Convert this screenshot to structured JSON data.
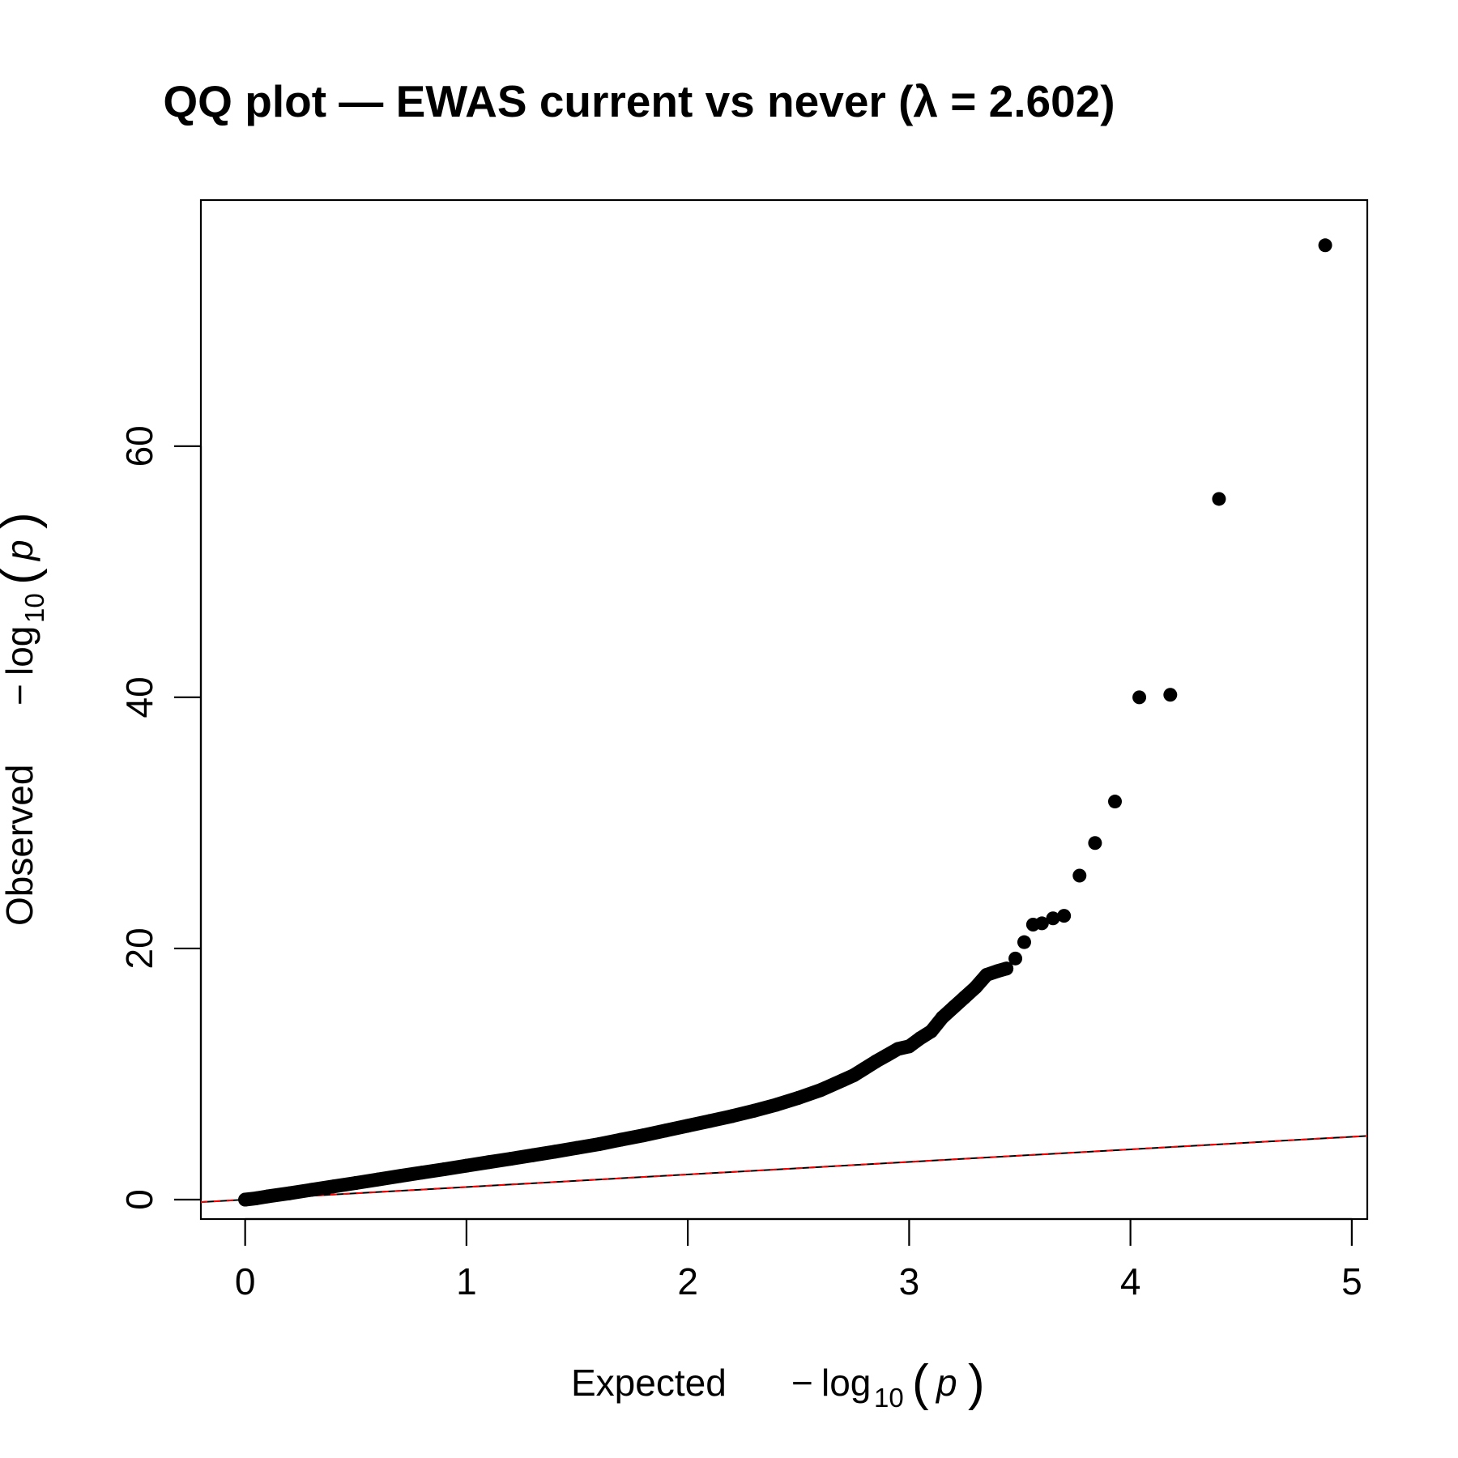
{
  "chart_data": {
    "type": "scatter",
    "title": "QQ plot — EWAS current vs never (λ = 2.602)",
    "xlabel": {
      "prefix": "Expected",
      "minus": "−",
      "log": "log",
      "base": "10",
      "open_paren": "(",
      "var": "p",
      "close_paren": ")"
    },
    "ylabel": {
      "prefix": "Observed",
      "minus": "−",
      "log": "log",
      "base": "10",
      "open_paren": "(",
      "var": "p",
      "close_paren": ")"
    },
    "xlim": [
      -0.2,
      5.07
    ],
    "ylim": [
      -1.55,
      79.6
    ],
    "x_ticks": [
      0,
      1,
      2,
      3,
      4,
      5
    ],
    "x_tick_labels": [
      "0",
      "1",
      "2",
      "3",
      "4",
      "5"
    ],
    "y_ticks": [
      0,
      20,
      40,
      60
    ],
    "y_tick_labels": [
      "0",
      "20",
      "40",
      "60"
    ],
    "grid": false,
    "reference_line": {
      "slope": 1,
      "intercept": 0,
      "colors": [
        "#000000",
        "#ff0000"
      ],
      "dashed_color": "#ff0000"
    },
    "point_color": "#000000",
    "series": [
      {
        "values_x": [
          0.0,
          0.05,
          0.1,
          0.2,
          0.3,
          0.4,
          0.5,
          0.6,
          0.7,
          0.8,
          0.9,
          1.0,
          1.1,
          1.2,
          1.3,
          1.4,
          1.5,
          1.6,
          1.7,
          1.8,
          1.9,
          2.0,
          2.1,
          2.2,
          2.3,
          2.4,
          2.5,
          2.6,
          2.7,
          2.75,
          2.8,
          2.85,
          2.9,
          2.95,
          3.0,
          3.05,
          3.1,
          3.15,
          3.2,
          3.25,
          3.3,
          3.35,
          3.4,
          3.44,
          3.48,
          3.52,
          3.56,
          3.6,
          3.65,
          3.7,
          3.77,
          3.84,
          3.93,
          4.04,
          4.18,
          4.4,
          4.88
        ],
        "values_y": [
          0.0,
          0.1,
          0.25,
          0.5,
          0.78,
          1.05,
          1.32,
          1.6,
          1.88,
          2.15,
          2.42,
          2.7,
          2.98,
          3.25,
          3.53,
          3.82,
          4.12,
          4.42,
          4.78,
          5.12,
          5.5,
          5.88,
          6.26,
          6.65,
          7.08,
          7.55,
          8.1,
          8.72,
          9.5,
          9.9,
          10.45,
          11.0,
          11.5,
          12.0,
          12.2,
          12.85,
          13.4,
          14.5,
          15.3,
          16.1,
          16.9,
          17.9,
          18.2,
          18.4,
          19.2,
          20.5,
          21.9,
          22.0,
          22.4,
          22.6,
          25.8,
          28.4,
          31.7,
          40.0,
          40.2,
          55.8,
          76.0
        ]
      }
    ]
  }
}
